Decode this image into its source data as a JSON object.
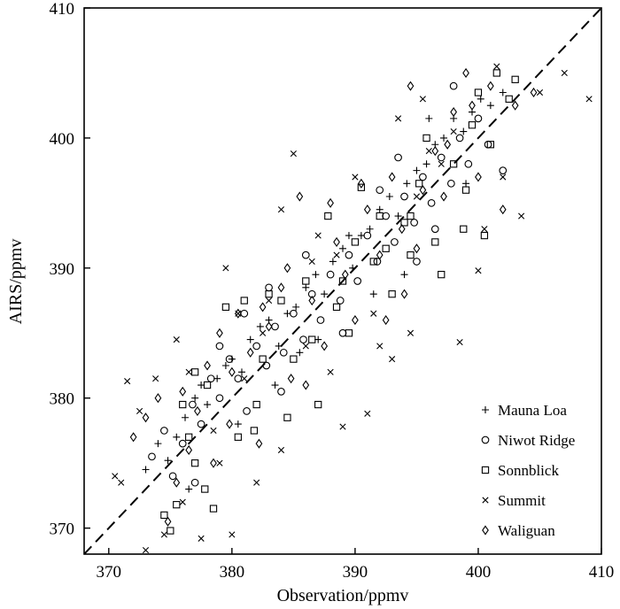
{
  "chart_data": {
    "type": "scatter",
    "title": "",
    "xlabel": "Observation/ppmv",
    "ylabel": "AIRS/ppmv",
    "xlim": [
      368,
      410
    ],
    "ylim": [
      368,
      410
    ],
    "x_ticks": [
      "370",
      "380",
      "390",
      "400",
      "410"
    ],
    "y_ticks": [
      "370",
      "380",
      "390",
      "400",
      "410"
    ],
    "grid": false,
    "legend_position": "bottom-right",
    "reference_line": {
      "style": "dashed",
      "points": [
        [
          368,
          368
        ],
        [
          410,
          410
        ]
      ]
    },
    "series": [
      {
        "name": "Mauna Loa",
        "marker": "plus",
        "points": [
          [
            373.0,
            374.5
          ],
          [
            374.0,
            376.5
          ],
          [
            374.8,
            375.2
          ],
          [
            375.5,
            377.0
          ],
          [
            376.2,
            378.5
          ],
          [
            377.0,
            380.0
          ],
          [
            377.5,
            381.0
          ],
          [
            378.0,
            379.5
          ],
          [
            378.8,
            381.5
          ],
          [
            379.5,
            382.5
          ],
          [
            380.0,
            383.0
          ],
          [
            380.8,
            382.0
          ],
          [
            381.5,
            384.5
          ],
          [
            382.3,
            385.5
          ],
          [
            383.0,
            386.0
          ],
          [
            383.8,
            384.0
          ],
          [
            384.5,
            386.5
          ],
          [
            385.2,
            387.0
          ],
          [
            386.0,
            388.5
          ],
          [
            386.8,
            389.5
          ],
          [
            387.5,
            388.0
          ],
          [
            388.2,
            390.5
          ],
          [
            389.0,
            391.5
          ],
          [
            389.8,
            390.0
          ],
          [
            390.5,
            392.5
          ],
          [
            391.2,
            393.0
          ],
          [
            392.0,
            394.5
          ],
          [
            392.8,
            395.5
          ],
          [
            393.5,
            394.0
          ],
          [
            394.2,
            396.5
          ],
          [
            395.0,
            397.5
          ],
          [
            395.8,
            398.0
          ],
          [
            396.5,
            399.5
          ],
          [
            397.2,
            400.0
          ],
          [
            398.0,
            401.5
          ],
          [
            398.8,
            400.5
          ],
          [
            399.5,
            402.0
          ],
          [
            400.2,
            403.0
          ],
          [
            401.0,
            402.5
          ],
          [
            402.0,
            403.5
          ],
          [
            394.0,
            389.5
          ],
          [
            391.5,
            388.0
          ],
          [
            383.5,
            381.0
          ],
          [
            380.5,
            378.0
          ],
          [
            376.5,
            373.0
          ],
          [
            399.0,
            396.5
          ],
          [
            387.0,
            384.5
          ],
          [
            385.5,
            383.5
          ],
          [
            396.0,
            401.5
          ],
          [
            389.5,
            392.5
          ]
        ]
      },
      {
        "name": "Niwot Ridge",
        "marker": "circle",
        "points": [
          [
            373.5,
            375.5
          ],
          [
            374.5,
            377.5
          ],
          [
            375.2,
            374.0
          ],
          [
            376.0,
            376.5
          ],
          [
            376.8,
            379.5
          ],
          [
            377.5,
            378.0
          ],
          [
            378.3,
            381.5
          ],
          [
            379.0,
            380.0
          ],
          [
            379.8,
            383.0
          ],
          [
            380.5,
            381.5
          ],
          [
            381.2,
            379.0
          ],
          [
            382.0,
            384.0
          ],
          [
            382.8,
            382.5
          ],
          [
            383.5,
            385.5
          ],
          [
            384.2,
            383.5
          ],
          [
            385.0,
            386.5
          ],
          [
            385.8,
            384.5
          ],
          [
            386.5,
            388.0
          ],
          [
            387.2,
            386.0
          ],
          [
            388.0,
            389.5
          ],
          [
            388.8,
            387.5
          ],
          [
            389.5,
            391.0
          ],
          [
            390.2,
            389.0
          ],
          [
            391.0,
            392.5
          ],
          [
            391.8,
            390.5
          ],
          [
            392.5,
            394.0
          ],
          [
            393.2,
            392.0
          ],
          [
            394.0,
            395.5
          ],
          [
            394.8,
            393.5
          ],
          [
            395.5,
            397.0
          ],
          [
            396.2,
            395.0
          ],
          [
            397.0,
            398.5
          ],
          [
            397.8,
            396.5
          ],
          [
            398.5,
            400.0
          ],
          [
            399.2,
            398.0
          ],
          [
            400.0,
            401.5
          ],
          [
            400.8,
            399.5
          ],
          [
            402.0,
            397.5
          ],
          [
            381.0,
            386.5
          ],
          [
            386.0,
            391.0
          ],
          [
            392.0,
            396.0
          ],
          [
            384.0,
            380.5
          ],
          [
            389.0,
            385.0
          ],
          [
            377.0,
            373.5
          ],
          [
            395.0,
            390.5
          ],
          [
            398.0,
            404.0
          ],
          [
            379.0,
            384.0
          ],
          [
            383.0,
            388.5
          ],
          [
            393.5,
            398.5
          ],
          [
            396.5,
            393.0
          ]
        ]
      },
      {
        "name": "Sonnblick",
        "marker": "square",
        "points": [
          [
            374.5,
            371.0
          ],
          [
            375.0,
            369.8
          ],
          [
            375.5,
            371.8
          ],
          [
            376.0,
            379.5
          ],
          [
            377.0,
            375.0
          ],
          [
            377.8,
            373.0
          ],
          [
            378.5,
            371.5
          ],
          [
            379.5,
            387.0
          ],
          [
            380.5,
            377.0
          ],
          [
            381.0,
            387.5
          ],
          [
            381.8,
            377.5
          ],
          [
            382.5,
            383.0
          ],
          [
            383.0,
            388.0
          ],
          [
            384.5,
            378.5
          ],
          [
            385.0,
            383.0
          ],
          [
            386.0,
            389.0
          ],
          [
            387.0,
            379.5
          ],
          [
            387.8,
            394.0
          ],
          [
            388.5,
            387.0
          ],
          [
            389.5,
            385.0
          ],
          [
            390.0,
            392.0
          ],
          [
            390.5,
            396.2
          ],
          [
            391.5,
            390.5
          ],
          [
            392.0,
            394.0
          ],
          [
            393.0,
            388.0
          ],
          [
            394.0,
            393.5
          ],
          [
            394.5,
            391.0
          ],
          [
            395.2,
            396.5
          ],
          [
            395.8,
            400.0
          ],
          [
            396.5,
            392.0
          ],
          [
            397.0,
            389.5
          ],
          [
            398.0,
            398.0
          ],
          [
            398.8,
            393.0
          ],
          [
            399.5,
            401.0
          ],
          [
            400.0,
            403.5
          ],
          [
            400.5,
            392.5
          ],
          [
            401.0,
            399.5
          ],
          [
            401.5,
            405.0
          ],
          [
            402.5,
            403.0
          ],
          [
            403.0,
            404.5
          ],
          [
            378.0,
            381.0
          ],
          [
            384.0,
            387.5
          ],
          [
            376.5,
            377.0
          ],
          [
            382.0,
            379.5
          ],
          [
            389.0,
            389.0
          ],
          [
            394.5,
            394.0
          ],
          [
            399.0,
            396.0
          ],
          [
            377.0,
            382.0
          ],
          [
            386.5,
            384.5
          ],
          [
            392.5,
            391.5
          ]
        ]
      },
      {
        "name": "Summit",
        "marker": "x",
        "points": [
          [
            370.5,
            374.0
          ],
          [
            371.5,
            381.3
          ],
          [
            372.5,
            379.0
          ],
          [
            373.0,
            368.3
          ],
          [
            373.8,
            381.5
          ],
          [
            374.5,
            369.5
          ],
          [
            375.5,
            384.5
          ],
          [
            376.5,
            382.0
          ],
          [
            377.5,
            369.2
          ],
          [
            378.5,
            377.5
          ],
          [
            379.5,
            390.0
          ],
          [
            380.0,
            369.5
          ],
          [
            381.0,
            381.5
          ],
          [
            382.0,
            373.5
          ],
          [
            383.0,
            387.5
          ],
          [
            384.0,
            376.0
          ],
          [
            385.0,
            398.8
          ],
          [
            386.0,
            384.0
          ],
          [
            387.0,
            392.5
          ],
          [
            388.0,
            382.0
          ],
          [
            389.0,
            377.8
          ],
          [
            390.0,
            397.0
          ],
          [
            391.0,
            378.8
          ],
          [
            392.0,
            384.0
          ],
          [
            393.0,
            383.0
          ],
          [
            393.5,
            401.5
          ],
          [
            394.5,
            385.0
          ],
          [
            395.0,
            395.5
          ],
          [
            396.0,
            399.0
          ],
          [
            397.0,
            398.0
          ],
          [
            398.5,
            384.3
          ],
          [
            400.0,
            389.8
          ],
          [
            400.5,
            393.0
          ],
          [
            401.5,
            405.5
          ],
          [
            402.0,
            397.0
          ],
          [
            403.5,
            394.0
          ],
          [
            405.0,
            403.5
          ],
          [
            407.0,
            405.0
          ],
          [
            409.0,
            403.0
          ],
          [
            371.0,
            373.5
          ],
          [
            384.0,
            394.5
          ],
          [
            380.5,
            386.5
          ],
          [
            388.5,
            391.0
          ],
          [
            379.0,
            375.0
          ],
          [
            391.5,
            386.5
          ],
          [
            395.5,
            403.0
          ],
          [
            386.5,
            390.5
          ],
          [
            382.5,
            385.0
          ],
          [
            398.0,
            400.5
          ],
          [
            376.0,
            372.0
          ]
        ]
      },
      {
        "name": "Waliguan",
        "marker": "diamond",
        "points": [
          [
            372.0,
            377.0
          ],
          [
            373.0,
            378.5
          ],
          [
            374.0,
            380.0
          ],
          [
            374.8,
            370.5
          ],
          [
            375.5,
            373.5
          ],
          [
            376.5,
            376.0
          ],
          [
            377.2,
            379.0
          ],
          [
            378.0,
            382.5
          ],
          [
            379.0,
            385.0
          ],
          [
            379.8,
            378.0
          ],
          [
            380.5,
            386.5
          ],
          [
            381.5,
            383.5
          ],
          [
            382.2,
            376.5
          ],
          [
            383.0,
            385.5
          ],
          [
            384.0,
            388.5
          ],
          [
            384.8,
            381.5
          ],
          [
            385.5,
            395.5
          ],
          [
            386.5,
            387.5
          ],
          [
            387.5,
            384.0
          ],
          [
            388.5,
            392.0
          ],
          [
            389.2,
            389.5
          ],
          [
            390.0,
            386.0
          ],
          [
            391.0,
            394.5
          ],
          [
            392.0,
            391.0
          ],
          [
            393.0,
            397.0
          ],
          [
            393.8,
            393.0
          ],
          [
            394.5,
            404.0
          ],
          [
            395.5,
            396.0
          ],
          [
            396.5,
            399.0
          ],
          [
            397.2,
            395.5
          ],
          [
            398.0,
            402.0
          ],
          [
            399.0,
            405.0
          ],
          [
            400.0,
            397.0
          ],
          [
            401.0,
            404.0
          ],
          [
            402.0,
            394.5
          ],
          [
            403.0,
            402.5
          ],
          [
            404.5,
            403.5
          ],
          [
            376.0,
            380.5
          ],
          [
            380.0,
            382.0
          ],
          [
            386.0,
            381.0
          ],
          [
            390.5,
            396.5
          ],
          [
            397.5,
            399.5
          ],
          [
            382.5,
            387.0
          ],
          [
            394.0,
            388.0
          ],
          [
            378.5,
            375.0
          ],
          [
            388.0,
            395.0
          ],
          [
            395.0,
            391.5
          ],
          [
            384.5,
            390.0
          ],
          [
            399.5,
            402.5
          ],
          [
            392.5,
            386.0
          ]
        ]
      }
    ]
  },
  "legend": {
    "items": [
      {
        "label": "Mauna Loa",
        "marker": "plus"
      },
      {
        "label": "Niwot Ridge",
        "marker": "circle"
      },
      {
        "label": "Sonnblick",
        "marker": "square"
      },
      {
        "label": "Summit",
        "marker": "x"
      },
      {
        "label": "Waliguan",
        "marker": "diamond"
      }
    ]
  }
}
